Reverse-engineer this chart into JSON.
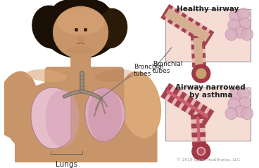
{
  "bg_color": "#ffffff",
  "label_bronchial": "Bronchial\ntubes",
  "label_lungs": "Lungs",
  "label_healthy": "Healthy airway",
  "label_asthma": "Airway narrowed\nby asthma",
  "copyright": "© 2019 Ignite Healthwise, LLC",
  "skin_base": "#c8956a",
  "skin_light": "#dba878",
  "skin_shadow": "#b07850",
  "lung_left_fill": "#d4a0b5",
  "lung_left_light": "#e8c0d0",
  "lung_right_fill": "#cc90a8",
  "lung_right_light": "#ddb0c0",
  "lung_border": "#a07088",
  "bronchial_outer": "#807060",
  "bronchial_inner": "#a09080",
  "hair_dark": "#1a0f05",
  "hair_mid": "#2a1a08",
  "text_color": "#222222",
  "arrow_color": "#666666",
  "box_border": "#999999",
  "airway_bg": "#f5ddd5",
  "airway_tube_light": "#e8b8b8",
  "airway_tube_mid": "#d08080",
  "airway_cartilage": "#a03845",
  "airway_inner_h": "#d4b090",
  "airway_inner_a": "#cc6070",
  "airway_inner_a_fill": "#e07878",
  "bubble_fill": "#d8aec0",
  "bubble_border": "#b87898",
  "cross_outer": "#e0b0b0",
  "cross_ring": "#a03845",
  "cross_inner_h": "#c8a070",
  "cross_inner_a": "#d86070",
  "cs_star": "#b05060"
}
